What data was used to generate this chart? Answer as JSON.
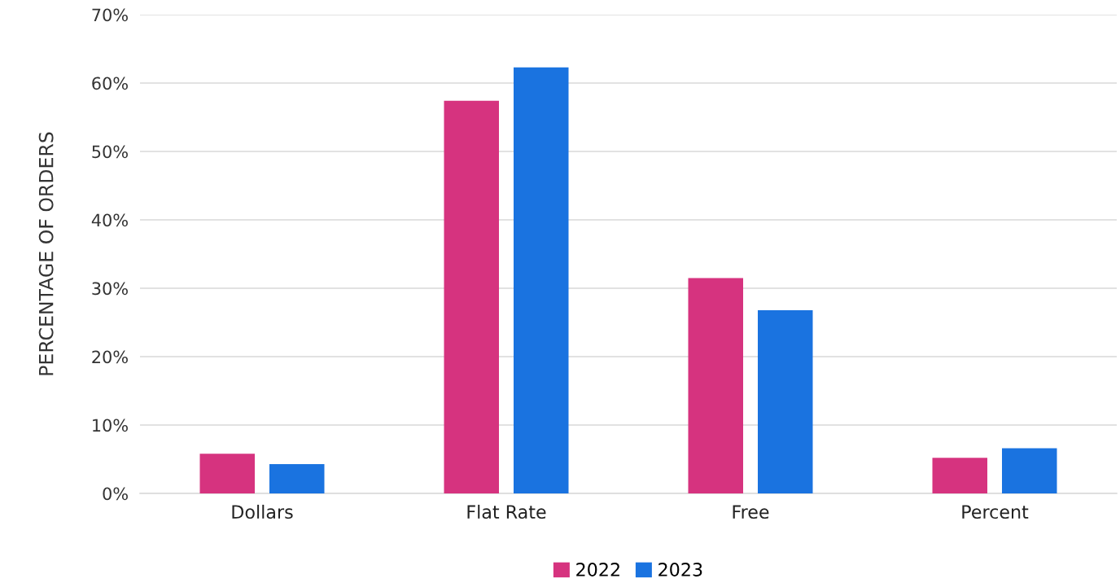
{
  "chart_data": {
    "type": "bar",
    "ylabel": "PERCENTAGE OF ORDERS",
    "categories": [
      "Dollars",
      "Flat Rate",
      "Free",
      "Percent"
    ],
    "series": [
      {
        "name": "2022",
        "color": "#d6337f",
        "values": [
          5.8,
          57.4,
          31.5,
          5.2
        ]
      },
      {
        "name": "2023",
        "color": "#1a73e0",
        "values": [
          4.3,
          62.3,
          26.8,
          6.6
        ]
      }
    ],
    "ylim": [
      0,
      70
    ],
    "yticks": [
      {
        "value": 0,
        "label": "0%"
      },
      {
        "value": 10,
        "label": "10%"
      },
      {
        "value": 20,
        "label": "20%"
      },
      {
        "value": 30,
        "label": "30%"
      },
      {
        "value": 40,
        "label": "40%"
      },
      {
        "value": 50,
        "label": "50%"
      },
      {
        "value": 60,
        "label": "60%"
      },
      {
        "value": 70,
        "label": "70%"
      }
    ],
    "grid": "y",
    "legend": "bottom"
  }
}
